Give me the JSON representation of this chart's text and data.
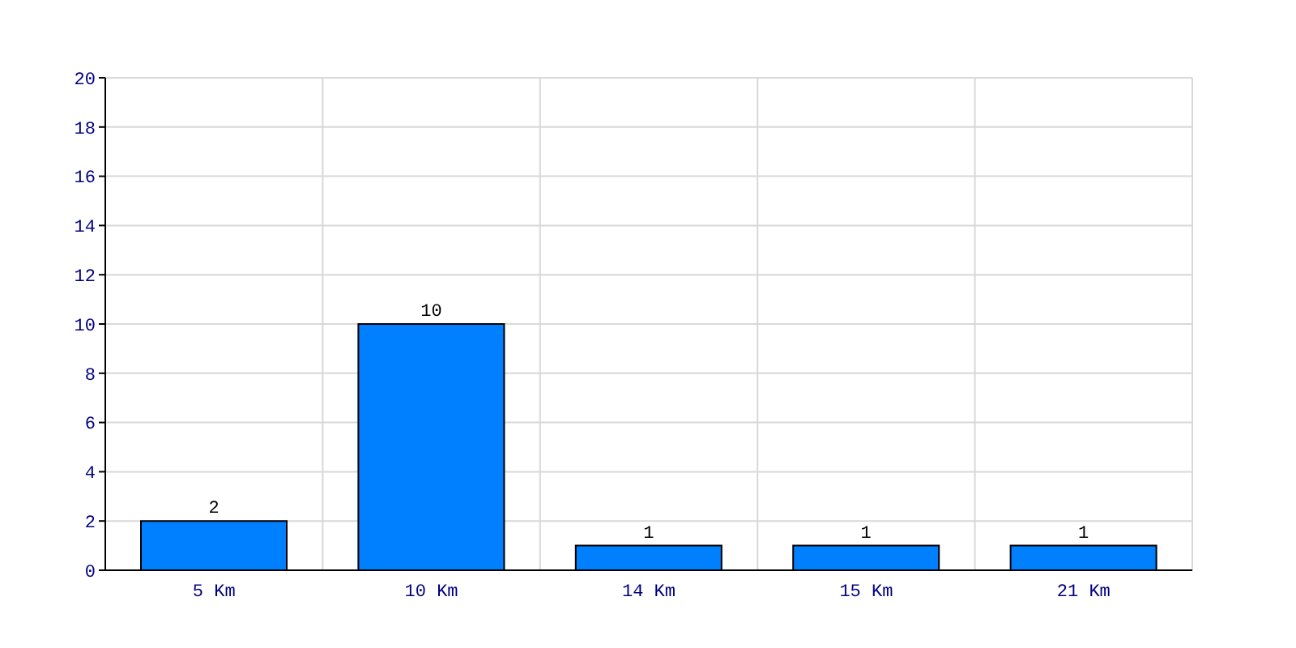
{
  "chart_data": {
    "type": "bar",
    "categories": [
      "5 Km",
      "10 Km",
      "14 Km",
      "15 Km",
      "21 Km"
    ],
    "values": [
      2,
      10,
      1,
      1,
      1
    ],
    "color": "#0080ff",
    "ylim": [
      0,
      20
    ],
    "yticks": [
      0,
      2,
      4,
      6,
      8,
      10,
      12,
      14,
      16,
      18,
      20
    ],
    "grid": true,
    "data_labels": true
  }
}
